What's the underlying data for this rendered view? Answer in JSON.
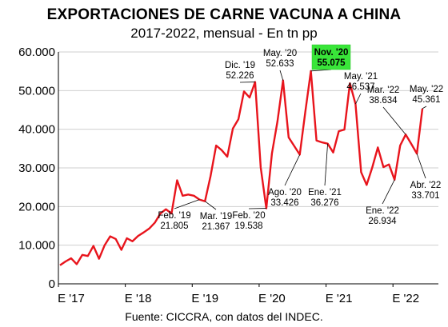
{
  "chart_data": {
    "type": "line",
    "title": "EXPORTACIONES DE CARNE VACUNA A CHINA",
    "subtitle": "2017-2022, mensual - En tn pp",
    "source": "Fuente: CICCRA, con datos del INDEC.",
    "ylim": [
      0,
      60000
    ],
    "yticks": [
      {
        "value": 0,
        "label": "0"
      },
      {
        "value": 10000,
        "label": "10.000"
      },
      {
        "value": 20000,
        "label": "20.000"
      },
      {
        "value": 30000,
        "label": "30.000"
      },
      {
        "value": 40000,
        "label": "40.000"
      },
      {
        "value": 50000,
        "label": "50.000"
      },
      {
        "value": 60000,
        "label": "60.000"
      }
    ],
    "xticks": [
      {
        "index": 0,
        "label": "E '17"
      },
      {
        "index": 12,
        "label": "E '18"
      },
      {
        "index": 24,
        "label": "E '19"
      },
      {
        "index": 36,
        "label": "E '20"
      },
      {
        "index": 48,
        "label": "E '21"
      },
      {
        "index": 60,
        "label": "E '22"
      }
    ],
    "grid": true,
    "line_color": "#e8141c",
    "highlight_color": "#39e639",
    "series": [
      {
        "values": [
          4800,
          5800,
          6600,
          5100,
          7500,
          7200,
          9800,
          6500,
          10000,
          12300,
          11600,
          8800,
          11800,
          11000,
          12400,
          13300,
          14300,
          15800,
          18200,
          19300,
          18200,
          26800,
          22800,
          23100,
          22800,
          21805,
          21367,
          27900,
          35800,
          34600,
          32900,
          40200,
          42600,
          49800,
          48200,
          52226,
          30100,
          19538,
          33700,
          42000,
          52633,
          37900,
          35700,
          33426,
          44600,
          55075,
          37100,
          36600,
          36276,
          34000,
          39500,
          39900,
          51900,
          46537,
          28900,
          25600,
          30100,
          35300,
          30200,
          30900,
          26934,
          35800,
          38634,
          36200,
          33701,
          45361
        ]
      }
    ],
    "annotations": [
      {
        "index": 25,
        "lines": [
          "Feb. '19",
          "21.805"
        ],
        "highlight": false
      },
      {
        "index": 26,
        "lines": [
          "Mar. '19",
          "21.367"
        ],
        "highlight": false
      },
      {
        "index": 35,
        "lines": [
          "Dic. '19",
          "52.226"
        ],
        "highlight": false
      },
      {
        "index": 37,
        "lines": [
          "Feb. '20",
          "19.538"
        ],
        "highlight": false
      },
      {
        "index": 40,
        "lines": [
          "May. '20",
          "52.633"
        ],
        "highlight": false
      },
      {
        "index": 43,
        "lines": [
          "Ago. '20",
          "33.426"
        ],
        "highlight": false
      },
      {
        "index": 45,
        "lines": [
          "Nov. '20",
          "55.075"
        ],
        "highlight": true
      },
      {
        "index": 48,
        "lines": [
          "Ene. '21",
          "36.276"
        ],
        "highlight": false
      },
      {
        "index": 53,
        "lines": [
          "May. '21",
          "46.537"
        ],
        "highlight": false
      },
      {
        "index": 60,
        "lines": [
          "Ene. '22",
          "26.934"
        ],
        "highlight": false
      },
      {
        "index": 62,
        "lines": [
          "Mar. '22",
          "38.634"
        ],
        "highlight": false
      },
      {
        "index": 64,
        "lines": [
          "Abr. '22",
          "33.701"
        ],
        "highlight": false
      },
      {
        "index": 65,
        "lines": [
          "May. '22",
          "45.361"
        ],
        "highlight": false
      }
    ]
  }
}
